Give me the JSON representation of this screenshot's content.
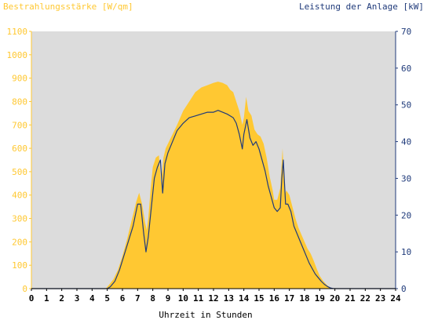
{
  "chart_data": {
    "type": "area",
    "ylabel_left": "Bestrahlungsstärke [W/qm]",
    "ylabel_right": "Leistung der Anlage [kW]",
    "xlabel": "Uhrzeit in Stunden",
    "xlim": [
      0,
      24
    ],
    "ylim_left": [
      0,
      1100
    ],
    "ylim_right": [
      0,
      70
    ],
    "x_ticks": [
      0,
      1,
      2,
      3,
      4,
      5,
      6,
      7,
      8,
      9,
      10,
      11,
      12,
      13,
      14,
      15,
      16,
      17,
      18,
      19,
      20,
      21,
      22,
      23,
      24
    ],
    "y_ticks_left": [
      0,
      100,
      200,
      300,
      400,
      500,
      600,
      700,
      800,
      900,
      1000,
      1100
    ],
    "y_ticks_right": [
      0,
      10,
      20,
      30,
      40,
      50,
      60,
      70
    ],
    "grid": false,
    "colors": {
      "irradiance": "#ffc832",
      "power": "#1f3a7a",
      "plot_background": "#dcdcdc",
      "left_axis": "#ffc832",
      "right_axis": "#1f3a7a"
    },
    "series": [
      {
        "name": "Bestrahlungsstärke [W/qm]",
        "axis": "left",
        "type": "area",
        "x": [
          0,
          4.9,
          5.1,
          5.4,
          5.7,
          6.0,
          6.3,
          6.6,
          6.9,
          7.1,
          7.3,
          7.5,
          7.6,
          7.7,
          7.85,
          8.0,
          8.2,
          8.4,
          8.55,
          8.7,
          8.85,
          9.0,
          9.3,
          9.6,
          10.0,
          10.4,
          10.8,
          11.2,
          11.6,
          12.0,
          12.3,
          12.6,
          12.9,
          13.1,
          13.3,
          13.5,
          13.7,
          13.9,
          14.0,
          14.15,
          14.3,
          14.5,
          14.7,
          14.9,
          15.1,
          15.3,
          15.5,
          15.7,
          15.9,
          16.0,
          16.2,
          16.4,
          16.55,
          16.7,
          16.8,
          17.0,
          17.2,
          17.4,
          17.6,
          17.8,
          18.0,
          18.2,
          18.4,
          18.6,
          18.8,
          19.0,
          19.2,
          19.4,
          19.6,
          19.8,
          20.0,
          24
        ],
        "y": [
          0,
          0,
          15,
          40,
          80,
          140,
          210,
          290,
          370,
          410,
          360,
          280,
          250,
          300,
          420,
          520,
          560,
          570,
          450,
          560,
          600,
          620,
          660,
          700,
          760,
          800,
          840,
          860,
          870,
          880,
          885,
          880,
          870,
          850,
          840,
          800,
          760,
          700,
          730,
          820,
          760,
          740,
          680,
          660,
          650,
          620,
          560,
          480,
          420,
          380,
          380,
          430,
          600,
          400,
          420,
          400,
          350,
          300,
          260,
          230,
          200,
          170,
          150,
          120,
          85,
          55,
          35,
          20,
          8,
          2,
          0,
          0
        ]
      },
      {
        "name": "Leistung der Anlage [kW]",
        "axis": "right",
        "type": "line",
        "x": [
          0,
          5.0,
          5.2,
          5.5,
          5.8,
          6.1,
          6.4,
          6.7,
          7.0,
          7.2,
          7.4,
          7.55,
          7.7,
          7.9,
          8.1,
          8.3,
          8.5,
          8.65,
          8.8,
          9.0,
          9.3,
          9.6,
          10.0,
          10.4,
          10.8,
          11.2,
          11.6,
          12.0,
          12.3,
          12.6,
          12.9,
          13.1,
          13.3,
          13.5,
          13.7,
          13.9,
          14.0,
          14.2,
          14.4,
          14.6,
          14.8,
          15.0,
          15.2,
          15.4,
          15.6,
          15.8,
          16.0,
          16.2,
          16.4,
          16.5,
          16.6,
          16.75,
          16.9,
          17.1,
          17.3,
          17.5,
          17.7,
          17.9,
          18.1,
          18.3,
          18.5,
          18.7,
          18.9,
          19.1,
          19.3,
          19.5,
          19.7,
          19.9,
          20.1,
          24
        ],
        "y": [
          0,
          0,
          0.5,
          2,
          5,
          9,
          13,
          17,
          23,
          23,
          15,
          10,
          14,
          22,
          30,
          33,
          35,
          26,
          34,
          37,
          40,
          43,
          45,
          46.5,
          47,
          47.5,
          48,
          48,
          48.5,
          48,
          47.5,
          47,
          46.5,
          45,
          42,
          38,
          42,
          46,
          41,
          39,
          40,
          38,
          35,
          32,
          28,
          25,
          22,
          21,
          22,
          30,
          35,
          23,
          23,
          21,
          17,
          15,
          13,
          11,
          9,
          7,
          5.5,
          4,
          3,
          2,
          1.2,
          0.6,
          0.2,
          0,
          0,
          0
        ]
      }
    ]
  }
}
